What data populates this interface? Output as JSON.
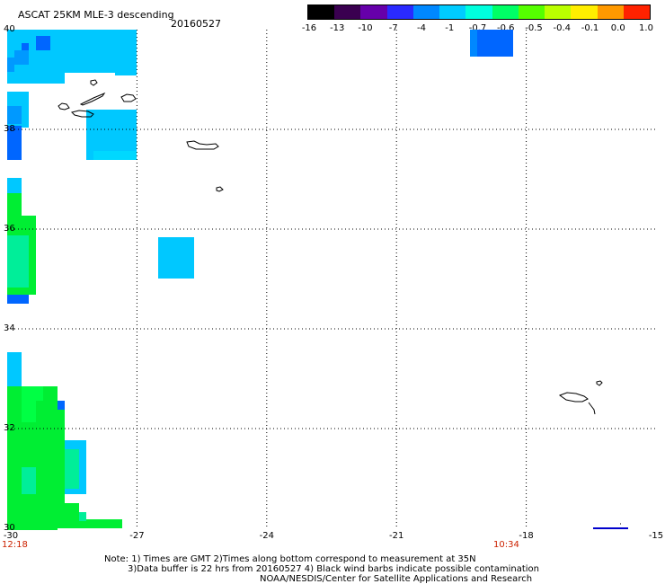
{
  "header": {
    "title": "ASCAT 25KM MLE-3 descending",
    "date": "20160527"
  },
  "colorbar": {
    "labels": [
      "-16",
      "-13",
      "-10",
      "-7",
      "-4",
      "-1",
      "-0.7",
      "-0.6",
      "-0.5",
      "-0.4",
      "-0.1",
      "0.0",
      "1.0"
    ],
    "colors": [
      "#000000",
      "#3a0050",
      "#6600aa",
      "#2a2aff",
      "#0088ff",
      "#00ccff",
      "#00ffdd",
      "#00ff66",
      "#55ff00",
      "#bbff00",
      "#ffee00",
      "#ff9900",
      "#ff2200"
    ]
  },
  "axes": {
    "lon_labels": [
      "-30",
      "-27",
      "-24",
      "-21",
      "-18",
      "-15"
    ],
    "lat_labels": [
      "40",
      "38",
      "36",
      "34",
      "32",
      "30"
    ],
    "lon_range": [
      -30,
      -15
    ],
    "lat_range": [
      30,
      40
    ]
  },
  "times": {
    "left": "12:18",
    "right": "10:34"
  },
  "notes": {
    "line1": "Note: 1) Times are GMT 2)Times along bottom correspond to measurement at 35N",
    "line2": "3)Data buffer is 22 hrs from 20160527 4) Black wind barbs indicate possible contamination",
    "line3": "NOAA/NESDIS/Center for Satellite Applications and Research"
  },
  "data_colors": {
    "cyan": "#00c8ff",
    "blue": "#0066ff",
    "green": "#00ee33",
    "teal": "#00ee99"
  }
}
